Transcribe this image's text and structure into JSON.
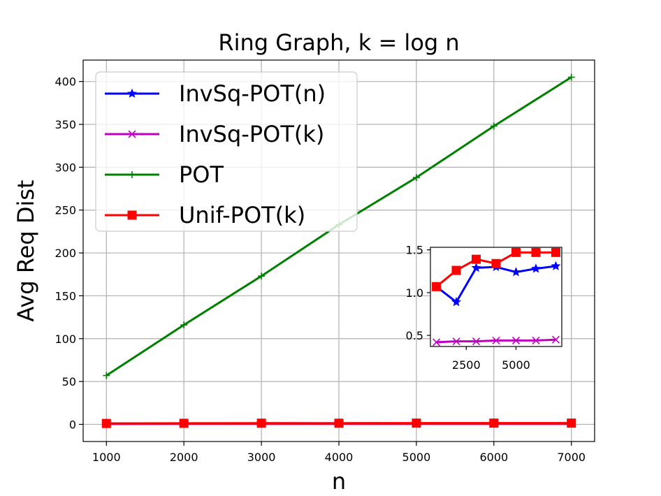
{
  "chart_data": {
    "type": "line",
    "title": "Ring Graph, k = log n",
    "xlabel": "n",
    "ylabel": "Avg Req Dist",
    "xlim": [
      700,
      7300
    ],
    "ylim": [
      -20,
      425
    ],
    "xticks": [
      1000,
      2000,
      3000,
      4000,
      5000,
      6000,
      7000
    ],
    "yticks": [
      0,
      50,
      100,
      150,
      200,
      250,
      300,
      350,
      400
    ],
    "grid": true,
    "legend_position": "upper-left",
    "x": [
      1000,
      2000,
      3000,
      4000,
      5000,
      6000,
      7000
    ],
    "series": [
      {
        "name": "InvSq-POT(n)",
        "color": "#0000ff",
        "marker": "star",
        "values": [
          1.07,
          0.89,
          1.29,
          1.3,
          1.24,
          1.28,
          1.31
        ]
      },
      {
        "name": "InvSq-POT(k)",
        "color": "#bf00bf",
        "marker": "x",
        "values": [
          0.42,
          0.43,
          0.43,
          0.44,
          0.44,
          0.44,
          0.45
        ]
      },
      {
        "name": "POT",
        "color": "#008000",
        "marker": "plus",
        "values": [
          57,
          116,
          173,
          233,
          288,
          348,
          405
        ]
      },
      {
        "name": "Unif-POT(k)",
        "color": "#ff0000",
        "marker": "square",
        "values": [
          1.07,
          1.26,
          1.39,
          1.34,
          1.47,
          1.47,
          1.47
        ]
      }
    ],
    "inset": {
      "xlim": [
        700,
        7300
      ],
      "ylim": [
        0.37,
        1.53
      ],
      "xticks": [
        2500,
        5000
      ],
      "yticks": [
        0.5,
        1.0,
        1.5
      ],
      "xtick_labels": [
        "2500",
        "5000"
      ],
      "ytick_labels": [
        "0.5",
        "1.0",
        "1.5"
      ],
      "series_shown": [
        "InvSq-POT(n)",
        "InvSq-POT(k)",
        "Unif-POT(k)"
      ],
      "position": "lower-right"
    }
  }
}
